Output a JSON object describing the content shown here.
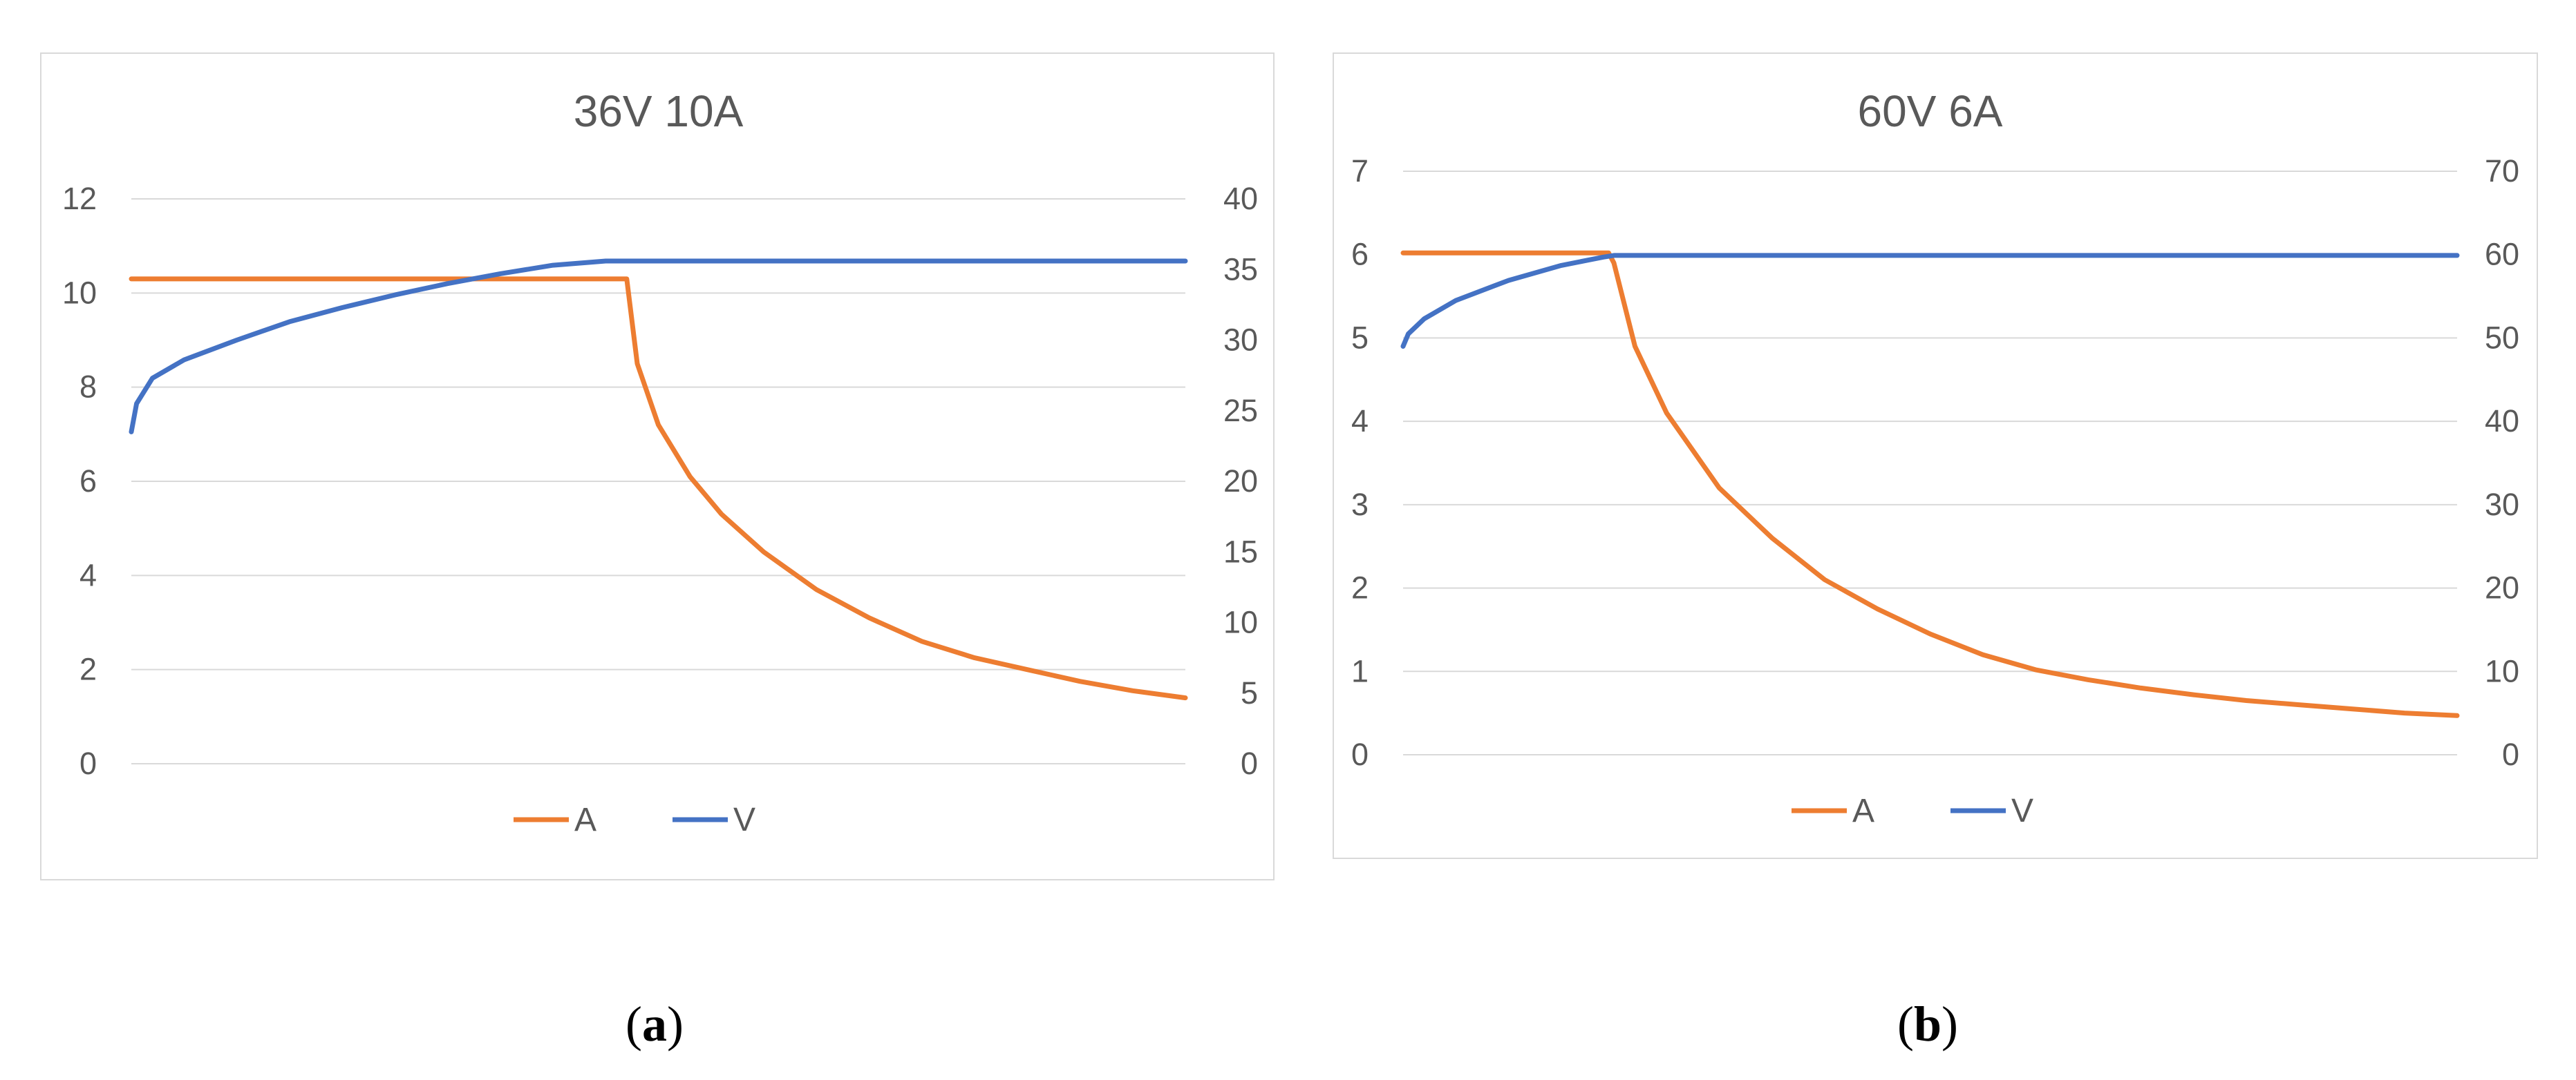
{
  "chart_data": [
    {
      "type": "line",
      "title": "36V 10A",
      "caption_letter": "a",
      "y_left": {
        "ticks": [
          "0",
          "2",
          "4",
          "6",
          "8",
          "10",
          "12"
        ],
        "range": [
          0,
          12
        ]
      },
      "y_right": {
        "ticks": [
          "0",
          "5",
          "10",
          "15",
          "20",
          "25",
          "30",
          "35",
          "40"
        ],
        "range": [
          0,
          40
        ]
      },
      "grid": true,
      "legend_position": "bottom",
      "series": [
        {
          "name": "A",
          "axis": "left",
          "color": "#ED7D31",
          "points": [
            [
              0,
              10.3
            ],
            [
              0.47,
              10.3
            ],
            [
              0.48,
              8.5
            ],
            [
              0.5,
              7.2
            ],
            [
              0.53,
              6.1
            ],
            [
              0.56,
              5.3
            ],
            [
              0.6,
              4.5
            ],
            [
              0.65,
              3.7
            ],
            [
              0.7,
              3.1
            ],
            [
              0.75,
              2.6
            ],
            [
              0.8,
              2.25
            ],
            [
              0.85,
              2.0
            ],
            [
              0.9,
              1.75
            ],
            [
              0.95,
              1.55
            ],
            [
              1.0,
              1.4
            ]
          ]
        },
        {
          "name": "V",
          "axis": "right",
          "color": "#4472C4",
          "points": [
            [
              0,
              23.5
            ],
            [
              0.005,
              25.5
            ],
            [
              0.02,
              27.3
            ],
            [
              0.05,
              28.6
            ],
            [
              0.1,
              30.0
            ],
            [
              0.15,
              31.3
            ],
            [
              0.2,
              32.3
            ],
            [
              0.25,
              33.2
            ],
            [
              0.3,
              34.0
            ],
            [
              0.35,
              34.7
            ],
            [
              0.4,
              35.3
            ],
            [
              0.45,
              35.6
            ],
            [
              0.47,
              35.6
            ],
            [
              1.0,
              35.6
            ]
          ]
        }
      ]
    },
    {
      "type": "line",
      "title": "60V 6A",
      "caption_letter": "b",
      "y_left": {
        "ticks": [
          "0",
          "1",
          "2",
          "3",
          "4",
          "5",
          "6",
          "7"
        ],
        "range": [
          0,
          7
        ]
      },
      "y_right": {
        "ticks": [
          "0",
          "10",
          "20",
          "30",
          "40",
          "50",
          "60",
          "70"
        ],
        "range": [
          0,
          70
        ]
      },
      "grid": true,
      "legend_position": "bottom",
      "series": [
        {
          "name": "A",
          "axis": "left",
          "color": "#ED7D31",
          "points": [
            [
              0,
              6.02
            ],
            [
              0.195,
              6.02
            ],
            [
              0.2,
              5.9
            ],
            [
              0.22,
              4.9
            ],
            [
              0.25,
              4.1
            ],
            [
              0.3,
              3.2
            ],
            [
              0.35,
              2.6
            ],
            [
              0.4,
              2.1
            ],
            [
              0.45,
              1.75
            ],
            [
              0.5,
              1.45
            ],
            [
              0.55,
              1.2
            ],
            [
              0.6,
              1.02
            ],
            [
              0.65,
              0.9
            ],
            [
              0.7,
              0.8
            ],
            [
              0.75,
              0.72
            ],
            [
              0.8,
              0.65
            ],
            [
              0.85,
              0.6
            ],
            [
              0.9,
              0.55
            ],
            [
              0.95,
              0.5
            ],
            [
              1.0,
              0.47
            ]
          ]
        },
        {
          "name": "V",
          "axis": "right",
          "color": "#4472C4",
          "points": [
            [
              0,
              49
            ],
            [
              0.005,
              50.5
            ],
            [
              0.02,
              52.3
            ],
            [
              0.05,
              54.5
            ],
            [
              0.1,
              56.9
            ],
            [
              0.15,
              58.7
            ],
            [
              0.19,
              59.7
            ],
            [
              0.2,
              59.9
            ],
            [
              1.0,
              59.9
            ]
          ]
        }
      ]
    }
  ]
}
